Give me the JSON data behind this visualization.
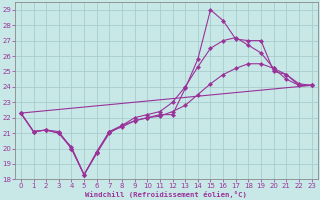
{
  "xlabel": "Windchill (Refroidissement éolien,°C)",
  "background_color": "#c8e8e8",
  "grid_color": "#a8cccc",
  "line_color": "#993399",
  "xlim": [
    -0.5,
    23.5
  ],
  "ylim": [
    18,
    29.5
  ],
  "xticks": [
    0,
    1,
    2,
    3,
    4,
    5,
    6,
    7,
    8,
    9,
    10,
    11,
    12,
    13,
    14,
    15,
    16,
    17,
    18,
    19,
    20,
    21,
    22,
    23
  ],
  "yticks": [
    18,
    19,
    20,
    21,
    22,
    23,
    24,
    25,
    26,
    27,
    28,
    29
  ],
  "series": [
    {
      "x": [
        0,
        1,
        2,
        3,
        4,
        5,
        6,
        7,
        8,
        9,
        10,
        11,
        12,
        13,
        14,
        15,
        16,
        17,
        18,
        19,
        20,
        21,
        22,
        23
      ],
      "y": [
        22.3,
        21.1,
        21.2,
        21.1,
        20.0,
        18.3,
        19.7,
        21.1,
        21.5,
        21.8,
        22.0,
        22.2,
        22.2,
        23.9,
        25.8,
        29.0,
        28.3,
        27.1,
        27.0,
        27.0,
        25.0,
        24.8,
        24.1,
        24.1
      ]
    },
    {
      "x": [
        0,
        1,
        2,
        3,
        4,
        5,
        6,
        7,
        8,
        9,
        10,
        11,
        12,
        13,
        14,
        15,
        16,
        17,
        18,
        19,
        20,
        21,
        22,
        23
      ],
      "y": [
        22.3,
        21.1,
        21.2,
        21.0,
        20.1,
        18.3,
        19.7,
        21.0,
        21.5,
        22.0,
        22.2,
        22.4,
        23.0,
        24.0,
        25.3,
        26.5,
        27.0,
        27.2,
        26.7,
        26.2,
        25.2,
        24.5,
        24.1,
        24.1
      ]
    },
    {
      "x": [
        0,
        1,
        2,
        3,
        4,
        5,
        6,
        7,
        8,
        9,
        10,
        11,
        12,
        13,
        14,
        15,
        16,
        17,
        18,
        19,
        20,
        21,
        22,
        23
      ],
      "y": [
        22.3,
        21.1,
        21.2,
        21.0,
        20.0,
        18.3,
        19.8,
        21.1,
        21.4,
        21.8,
        22.0,
        22.1,
        22.4,
        22.8,
        23.5,
        24.2,
        24.8,
        25.2,
        25.5,
        25.5,
        25.2,
        24.8,
        24.2,
        24.1
      ]
    },
    {
      "x": [
        0,
        23
      ],
      "y": [
        22.3,
        24.1
      ]
    }
  ]
}
